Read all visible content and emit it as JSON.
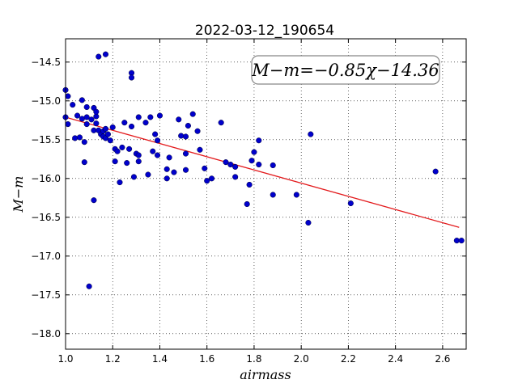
{
  "chart_data": {
    "type": "scatter",
    "title": "2022-03-12_190654",
    "xlabel": "airmass",
    "ylabel": "M−m",
    "xlim": [
      1.0,
      2.7
    ],
    "ylim": [
      -18.2,
      -14.2
    ],
    "xticks": [
      1.0,
      1.2,
      1.4,
      1.6,
      1.8,
      2.0,
      2.2,
      2.4,
      2.6
    ],
    "yticks": [
      -14.5,
      -15.0,
      -15.5,
      -16.0,
      -16.5,
      -17.0,
      -17.5,
      -18.0
    ],
    "xtick_labels": [
      "1.0",
      "1.2",
      "1.4",
      "1.6",
      "1.8",
      "2.0",
      "2.2",
      "2.4",
      "2.6"
    ],
    "ytick_labels": [
      "−14.5",
      "−15.0",
      "−15.5",
      "−16.0",
      "−16.5",
      "−17.0",
      "−17.5",
      "−18.0"
    ],
    "grid": true,
    "annotation": "M−m=−0.85χ−14.36",
    "fit": {
      "slope": -0.85,
      "intercept": -14.36,
      "x_range": [
        1.0,
        2.67
      ],
      "color": "#e31a1c"
    },
    "point_color": "#0000cc",
    "points": [
      [
        1.0,
        -14.86
      ],
      [
        1.0,
        -15.21
      ],
      [
        1.01,
        -14.94
      ],
      [
        1.01,
        -15.3
      ],
      [
        1.03,
        -15.05
      ],
      [
        1.04,
        -15.48
      ],
      [
        1.05,
        -15.19
      ],
      [
        1.06,
        -15.47
      ],
      [
        1.07,
        -14.99
      ],
      [
        1.07,
        -15.23
      ],
      [
        1.08,
        -15.53
      ],
      [
        1.08,
        -15.79
      ],
      [
        1.09,
        -15.3
      ],
      [
        1.09,
        -15.08
      ],
      [
        1.09,
        -15.21
      ],
      [
        1.1,
        -17.39
      ],
      [
        1.11,
        -15.24
      ],
      [
        1.12,
        -15.38
      ],
      [
        1.12,
        -15.09
      ],
      [
        1.12,
        -16.28
      ],
      [
        1.13,
        -15.2
      ],
      [
        1.13,
        -15.14
      ],
      [
        1.13,
        -15.29
      ],
      [
        1.14,
        -14.43
      ],
      [
        1.14,
        -15.38
      ],
      [
        1.15,
        -15.43
      ],
      [
        1.16,
        -15.46
      ],
      [
        1.16,
        -15.39
      ],
      [
        1.17,
        -15.36
      ],
      [
        1.17,
        -15.48
      ],
      [
        1.17,
        -14.4
      ],
      [
        1.18,
        -15.43
      ],
      [
        1.19,
        -15.51
      ],
      [
        1.2,
        -15.34
      ],
      [
        1.21,
        -15.62
      ],
      [
        1.21,
        -15.78
      ],
      [
        1.22,
        -15.65
      ],
      [
        1.23,
        -16.05
      ],
      [
        1.24,
        -15.6
      ],
      [
        1.25,
        -15.28
      ],
      [
        1.26,
        -15.8
      ],
      [
        1.27,
        -15.62
      ],
      [
        1.28,
        -15.33
      ],
      [
        1.28,
        -14.64
      ],
      [
        1.28,
        -14.7
      ],
      [
        1.29,
        -15.98
      ],
      [
        1.3,
        -15.68
      ],
      [
        1.31,
        -15.78
      ],
      [
        1.31,
        -15.21
      ],
      [
        1.31,
        -15.7
      ],
      [
        1.34,
        -15.28
      ],
      [
        1.35,
        -15.95
      ],
      [
        1.36,
        -15.21
      ],
      [
        1.37,
        -15.65
      ],
      [
        1.38,
        -15.43
      ],
      [
        1.39,
        -15.7
      ],
      [
        1.39,
        -15.51
      ],
      [
        1.4,
        -15.19
      ],
      [
        1.43,
        -15.88
      ],
      [
        1.43,
        -16.0
      ],
      [
        1.44,
        -15.73
      ],
      [
        1.46,
        -15.92
      ],
      [
        1.48,
        -15.24
      ],
      [
        1.49,
        -15.45
      ],
      [
        1.51,
        -15.46
      ],
      [
        1.51,
        -15.68
      ],
      [
        1.51,
        -15.89
      ],
      [
        1.52,
        -15.32
      ],
      [
        1.54,
        -15.17
      ],
      [
        1.56,
        -15.39
      ],
      [
        1.57,
        -15.63
      ],
      [
        1.59,
        -15.87
      ],
      [
        1.6,
        -16.03
      ],
      [
        1.62,
        -16.0
      ],
      [
        1.66,
        -15.28
      ],
      [
        1.68,
        -15.79
      ],
      [
        1.7,
        -15.82
      ],
      [
        1.72,
        -15.98
      ],
      [
        1.72,
        -15.85
      ],
      [
        1.77,
        -16.33
      ],
      [
        1.78,
        -16.08
      ],
      [
        1.79,
        -15.77
      ],
      [
        1.8,
        -15.66
      ],
      [
        1.82,
        -15.51
      ],
      [
        1.82,
        -15.82
      ],
      [
        1.88,
        -15.83
      ],
      [
        1.88,
        -16.21
      ],
      [
        1.98,
        -16.21
      ],
      [
        2.03,
        -16.57
      ],
      [
        2.04,
        -15.43
      ],
      [
        2.21,
        -16.32
      ],
      [
        2.57,
        -15.91
      ],
      [
        2.66,
        -16.8
      ],
      [
        2.68,
        -16.8
      ]
    ]
  }
}
